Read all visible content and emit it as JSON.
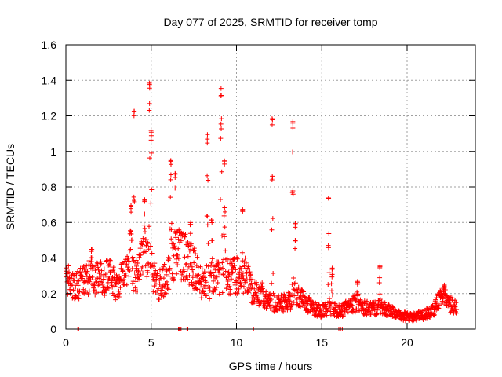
{
  "chart_data": {
    "type": "scatter",
    "title": "Day 077 of 2025, SRMTID for receiver tomp",
    "xlabel": "GPS time / hours",
    "ylabel": "SRMTID / TECUs",
    "xlim": [
      0,
      24
    ],
    "ylim": [
      0,
      1.6
    ],
    "x_ticks": [
      0,
      5,
      10,
      15,
      20
    ],
    "x_tick_labels": [
      "0",
      "5",
      "10",
      "15",
      "20"
    ],
    "y_ticks": [
      0,
      0.2,
      0.4,
      0.6,
      0.8,
      1.0,
      1.2,
      1.4,
      1.6
    ],
    "y_tick_labels": [
      "0",
      "0.2",
      "0.4",
      "0.6",
      "0.8",
      "1",
      "1.2",
      "1.4",
      "1.6"
    ],
    "grid": true,
    "marker": "plus",
    "marker_color": "#ff0000",
    "x_range": [
      0.0,
      22.9
    ],
    "series": [
      {
        "name": "SRMTID",
        "baseline": [
          [
            0.0,
            0.28
          ],
          [
            0.5,
            0.25
          ],
          [
            1.0,
            0.27
          ],
          [
            1.5,
            0.3
          ],
          [
            2.0,
            0.28
          ],
          [
            2.5,
            0.3
          ],
          [
            3.0,
            0.24
          ],
          [
            3.5,
            0.35
          ],
          [
            4.2,
            0.3
          ],
          [
            4.6,
            0.45
          ],
          [
            5.0,
            0.3
          ],
          [
            5.5,
            0.25
          ],
          [
            6.0,
            0.3
          ],
          [
            6.5,
            0.45
          ],
          [
            7.0,
            0.4
          ],
          [
            7.5,
            0.35
          ],
          [
            8.0,
            0.25
          ],
          [
            8.5,
            0.25
          ],
          [
            9.0,
            0.3
          ],
          [
            9.5,
            0.3
          ],
          [
            10.0,
            0.3
          ],
          [
            10.5,
            0.3
          ],
          [
            11.0,
            0.2
          ],
          [
            11.5,
            0.2
          ],
          [
            12.0,
            0.15
          ],
          [
            12.5,
            0.14
          ],
          [
            13.0,
            0.15
          ],
          [
            13.5,
            0.2
          ],
          [
            14.0,
            0.15
          ],
          [
            14.5,
            0.12
          ],
          [
            15.0,
            0.1
          ],
          [
            15.5,
            0.12
          ],
          [
            16.0,
            0.1
          ],
          [
            16.5,
            0.12
          ],
          [
            17.0,
            0.15
          ],
          [
            17.5,
            0.12
          ],
          [
            18.0,
            0.12
          ],
          [
            18.5,
            0.12
          ],
          [
            19.0,
            0.1
          ],
          [
            19.5,
            0.08
          ],
          [
            20.0,
            0.07
          ],
          [
            20.5,
            0.07
          ],
          [
            21.0,
            0.08
          ],
          [
            21.5,
            0.1
          ],
          [
            22.0,
            0.18
          ],
          [
            22.5,
            0.14
          ],
          [
            22.9,
            0.12
          ]
        ],
        "peaks": [
          {
            "x": 1.5,
            "y": 0.46,
            "w": 0.12
          },
          {
            "x": 3.8,
            "y": 0.7,
            "w": 0.15
          },
          {
            "x": 4.0,
            "y": 1.24,
            "w": 0.04
          },
          {
            "x": 4.6,
            "y": 0.75,
            "w": 0.1
          },
          {
            "x": 4.9,
            "y": 1.4,
            "w": 0.05
          },
          {
            "x": 5.0,
            "y": 1.12,
            "w": 0.07
          },
          {
            "x": 6.15,
            "y": 0.95,
            "w": 0.1
          },
          {
            "x": 6.4,
            "y": 0.89,
            "w": 0.07
          },
          {
            "x": 7.3,
            "y": 0.6,
            "w": 0.08
          },
          {
            "x": 8.3,
            "y": 1.1,
            "w": 0.07
          },
          {
            "x": 8.55,
            "y": 0.62,
            "w": 0.07
          },
          {
            "x": 9.1,
            "y": 1.36,
            "w": 0.07
          },
          {
            "x": 9.3,
            "y": 0.95,
            "w": 0.08
          },
          {
            "x": 10.35,
            "y": 0.68,
            "w": 0.06
          },
          {
            "x": 12.1,
            "y": 1.19,
            "w": 0.06
          },
          {
            "x": 13.3,
            "y": 1.17,
            "w": 0.05
          },
          {
            "x": 13.45,
            "y": 0.6,
            "w": 0.06
          },
          {
            "x": 15.4,
            "y": 0.75,
            "w": 0.05
          },
          {
            "x": 15.6,
            "y": 0.35,
            "w": 0.08
          },
          {
            "x": 17.1,
            "y": 0.27,
            "w": 0.1
          },
          {
            "x": 18.4,
            "y": 0.36,
            "w": 0.06
          },
          {
            "x": 22.2,
            "y": 0.25,
            "w": 0.2
          }
        ],
        "zero_points": [
          0.7,
          0.75,
          6.6,
          6.65,
          6.7,
          6.75,
          7.1,
          7.15,
          11.0,
          16.0,
          16.1,
          16.2
        ]
      }
    ]
  }
}
